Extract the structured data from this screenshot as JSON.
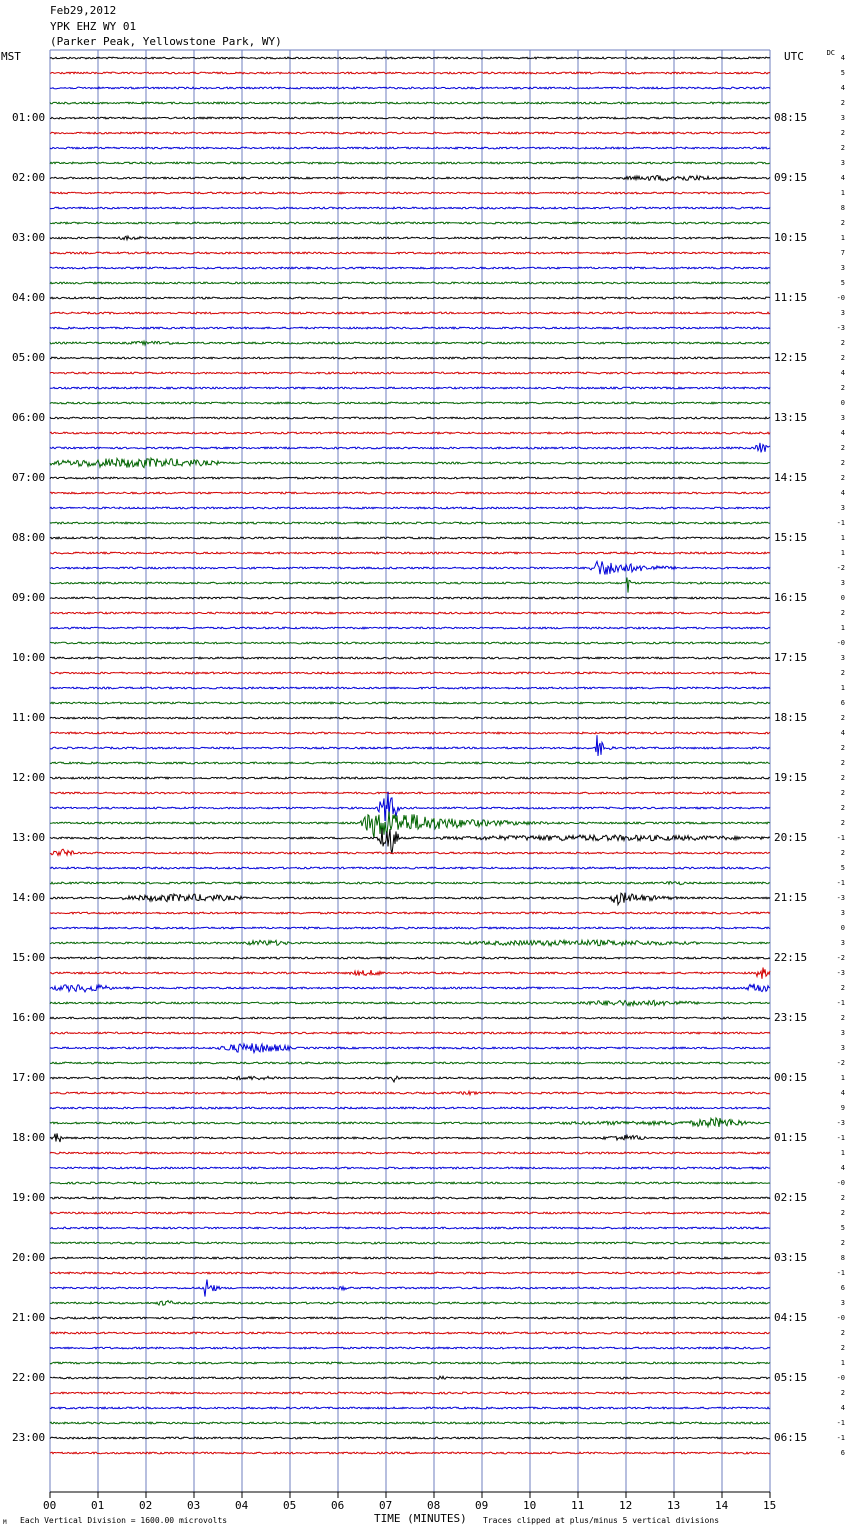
{
  "header": {
    "date": "Feb29,2012",
    "station": "YPK EHZ WY 01",
    "location": "(Parker Peak, Yellowstone Park, WY)"
  },
  "left_axis_title": "MST",
  "right_axis_title": "UTC",
  "dc_title": "DC",
  "footer": {
    "scale_note": "Each Vertical Division = 1600.00 microvolts",
    "x_title": "TIME (MINUTES)",
    "clip_note": "Traces clipped at plus/minus 5 vertical divisions",
    "corner_mark": "M"
  },
  "colors": {
    "trace_cycle": [
      "#000000",
      "#d40000",
      "#0000d8",
      "#006400"
    ],
    "grid": "#6f7fbf"
  },
  "chart_data": {
    "type": "line",
    "title": "YPK EHZ WY 01",
    "xlabel": "TIME (MINUTES)",
    "xlim": [
      0,
      15
    ],
    "x_ticks": [
      "00",
      "01",
      "02",
      "03",
      "04",
      "05",
      "06",
      "07",
      "08",
      "09",
      "10",
      "11",
      "12",
      "13",
      "14",
      "15"
    ],
    "traces_per_hour": 4,
    "left_hour_labels": [
      "01:00",
      "02:00",
      "03:00",
      "04:00",
      "05:00",
      "06:00",
      "07:00",
      "08:00",
      "09:00",
      "10:00",
      "11:00",
      "12:00",
      "13:00",
      "14:00",
      "15:00",
      "16:00",
      "17:00",
      "18:00",
      "19:00",
      "20:00",
      "21:00",
      "22:00",
      "23:00"
    ],
    "right_hour_labels": [
      "08:15",
      "09:15",
      "10:15",
      "11:15",
      "12:15",
      "13:15",
      "14:15",
      "15:15",
      "16:15",
      "17:15",
      "18:15",
      "19:15",
      "20:15",
      "21:15",
      "22:15",
      "23:15",
      "00:15",
      "01:15",
      "02:15",
      "03:15",
      "04:15",
      "05:15",
      "06:15"
    ],
    "dc_offsets": [
      "4",
      "5",
      "4",
      "2",
      "3",
      "2",
      "2",
      "3",
      "4",
      "1",
      "8",
      "2",
      "1",
      "7",
      "3",
      "5",
      "-0",
      "3",
      "-3",
      "2",
      "2",
      "4",
      "2",
      "0",
      "3",
      "4",
      "2",
      "2",
      "2",
      "4",
      "3",
      "-1",
      "1",
      "1",
      "-2",
      "3",
      "0",
      "2",
      "1",
      "-0",
      "3",
      "2",
      "1",
      "6",
      "2",
      "4",
      "2",
      "2",
      "2",
      "2",
      "2",
      "2",
      "-1",
      "2",
      "5",
      "-1",
      "-3",
      "3",
      "0",
      "3",
      "-2",
      "-3",
      "2",
      "-1",
      "2",
      "3",
      "3",
      "-2",
      "1",
      "4",
      "9",
      "-3",
      "-1",
      "1",
      "4",
      "-0",
      "2",
      "2",
      "5",
      "2",
      "8",
      "-1",
      "6",
      "3",
      "-0",
      "2",
      "2",
      "1",
      "-0",
      "2",
      "4",
      "-1",
      "-1",
      "6"
    ],
    "events": [
      {
        "trace": 8,
        "start": 11.9,
        "end": 14.0,
        "amp": 3,
        "kind": "noise"
      },
      {
        "trace": 12,
        "start": 1.3,
        "end": 2.0,
        "amp": 2,
        "kind": "noise"
      },
      {
        "trace": 19,
        "start": 1.5,
        "end": 2.8,
        "amp": 2,
        "kind": "noise"
      },
      {
        "trace": 26,
        "start": 14.7,
        "end": 15.0,
        "amp": 6,
        "kind": "noise"
      },
      {
        "trace": 27,
        "start": 0.0,
        "end": 3.5,
        "amp": 5,
        "kind": "noise"
      },
      {
        "trace": 34,
        "start": 11.2,
        "end": 14.0,
        "amp": 9,
        "kind": "quake"
      },
      {
        "trace": 35,
        "start": 12.0,
        "end": 12.1,
        "amp": 12,
        "kind": "spike"
      },
      {
        "trace": 46,
        "start": 11.35,
        "end": 11.8,
        "amp": 14,
        "kind": "quake"
      },
      {
        "trace": 50,
        "start": 6.9,
        "end": 7.2,
        "amp": 16,
        "kind": "spike"
      },
      {
        "trace": 50,
        "start": 6.95,
        "end": 7.15,
        "amp": 18,
        "kind": "spike2"
      },
      {
        "trace": 50,
        "start": 6.8,
        "end": 7.3,
        "amp": 16,
        "kind": "spike3"
      },
      {
        "trace": 51,
        "start": 6.4,
        "end": 11.0,
        "amp": 16,
        "kind": "quake"
      },
      {
        "trace": 52,
        "start": 6.8,
        "end": 7.3,
        "amp": 18,
        "kind": "spike"
      },
      {
        "trace": 52,
        "start": 8.0,
        "end": 15.0,
        "amp": 3,
        "kind": "noise"
      },
      {
        "trace": 53,
        "start": 0.0,
        "end": 0.5,
        "amp": 4,
        "kind": "noise"
      },
      {
        "trace": 55,
        "start": 12.7,
        "end": 13.3,
        "amp": 2,
        "kind": "noise"
      },
      {
        "trace": 56,
        "start": 1.5,
        "end": 4.0,
        "amp": 4,
        "kind": "noise"
      },
      {
        "trace": 56,
        "start": 11.6,
        "end": 14.0,
        "amp": 7,
        "kind": "quake"
      },
      {
        "trace": 59,
        "start": 4.0,
        "end": 5.0,
        "amp": 3,
        "kind": "noise"
      },
      {
        "trace": 59,
        "start": 8.5,
        "end": 13.5,
        "amp": 3,
        "kind": "noise"
      },
      {
        "trace": 61,
        "start": 6.2,
        "end": 7.0,
        "amp": 3,
        "kind": "noise"
      },
      {
        "trace": 61,
        "start": 14.7,
        "end": 15.0,
        "amp": 6,
        "kind": "noise"
      },
      {
        "trace": 62,
        "start": 0.0,
        "end": 1.3,
        "amp": 4,
        "kind": "noise"
      },
      {
        "trace": 62,
        "start": 14.5,
        "end": 15.0,
        "amp": 5,
        "kind": "noise"
      },
      {
        "trace": 63,
        "start": 10.8,
        "end": 13.5,
        "amp": 3,
        "kind": "noise"
      },
      {
        "trace": 66,
        "start": 3.5,
        "end": 5.0,
        "amp": 5,
        "kind": "noise"
      },
      {
        "trace": 68,
        "start": 3.5,
        "end": 5.0,
        "amp": 2,
        "kind": "noise"
      },
      {
        "trace": 68,
        "start": 7.1,
        "end": 7.3,
        "amp": 5,
        "kind": "spike"
      },
      {
        "trace": 69,
        "start": 8.5,
        "end": 9.0,
        "amp": 2,
        "kind": "noise"
      },
      {
        "trace": 71,
        "start": 10.0,
        "end": 15.0,
        "amp": 2,
        "kind": "noise"
      },
      {
        "trace": 71,
        "start": 13.3,
        "end": 14.5,
        "amp": 5,
        "kind": "noise"
      },
      {
        "trace": 72,
        "start": 0.0,
        "end": 0.3,
        "amp": 5,
        "kind": "spike"
      },
      {
        "trace": 72,
        "start": 11.5,
        "end": 12.5,
        "amp": 3,
        "kind": "noise"
      },
      {
        "trace": 82,
        "start": 3.2,
        "end": 3.6,
        "amp": 16,
        "kind": "quake"
      },
      {
        "trace": 82,
        "start": 6.0,
        "end": 6.2,
        "amp": 3,
        "kind": "noise"
      },
      {
        "trace": 83,
        "start": 2.2,
        "end": 2.6,
        "amp": 3,
        "kind": "noise"
      },
      {
        "trace": 88,
        "start": 8.0,
        "end": 8.3,
        "amp": 2,
        "kind": "noise"
      }
    ]
  }
}
